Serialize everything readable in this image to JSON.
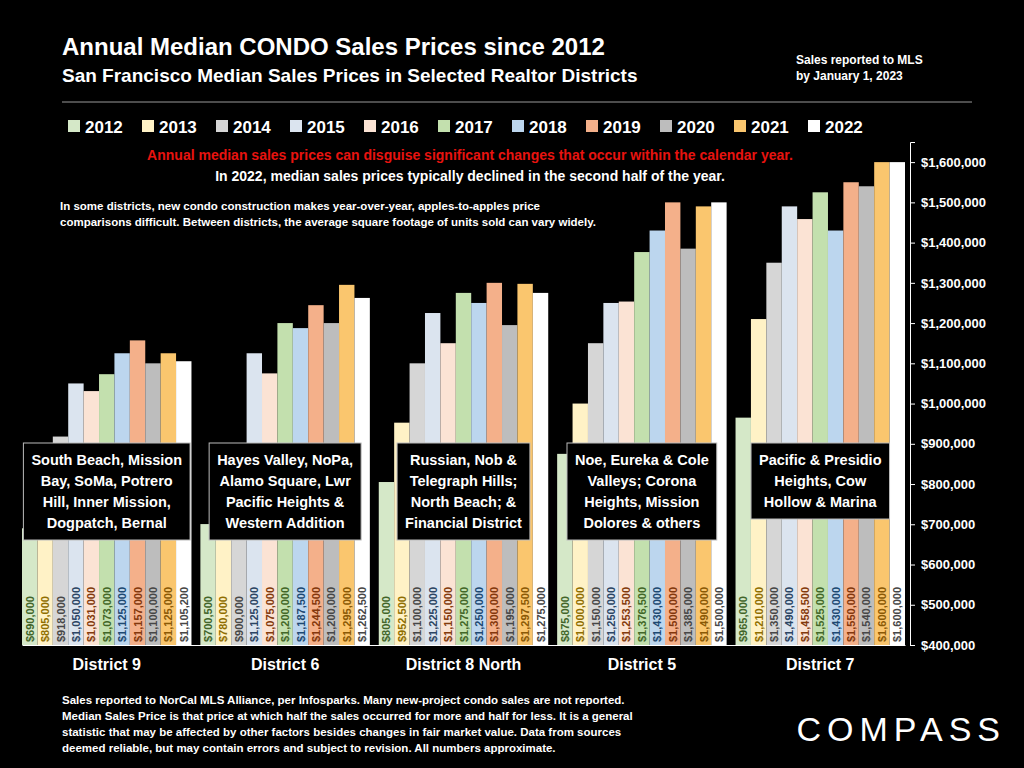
{
  "chart_data": {
    "type": "bar",
    "title": "Annual Median CONDO Sales Prices since 2012",
    "subtitle": "San Francisco Median Sales Prices in Selected Realtor Districts",
    "note": [
      "Sales reported to MLS",
      "by January 1, 2023"
    ],
    "annotations": {
      "highlight": "Annual median sales prices can disguise significant changes that occur within the calendar year.",
      "statement": "In 2022, median sales prices typically declined in the second half of the year.",
      "caveat": [
        "In some districts, new condo construction makes year-over-year, apples-to-apples price",
        "comparisons difficult. Between districts, the average square footage of units sold can vary widely."
      ],
      "districts": [
        [
          "South Beach, Mission",
          "Bay, SoMa, Potrero",
          "Hill, Inner Mission,",
          "Dogpatch, Bernal"
        ],
        [
          "Hayes Valley, NoPa,",
          "Alamo Square, Lwr",
          "Pacific Heights &",
          "Western Addition"
        ],
        [
          "Russian, Nob &",
          "Telegraph Hills;",
          "North Beach; &",
          "Financial District"
        ],
        [
          "Noe, Eureka & Cole",
          "Valleys; Corona",
          "Heights, Mission",
          "Dolores & others"
        ],
        [
          "Pacific & Presidio",
          "Heights, Cow",
          "Hollow & Marina"
        ]
      ],
      "footnote": [
        "Sales reported to NorCal MLS Alliance, per Infosparks. Many new-project condo sales are not reported.",
        "Median Sales Price is that price at which half the sales occurred for more and half for less. It is a general",
        "statistic that may be affected by other factors besides changes in fair market value. Data from sources",
        "deemed reliable, but may contain errors and subject to revision.  All numbers approximate."
      ],
      "brand": "COMPASS"
    },
    "categories": [
      "District 9",
      "District 6",
      "District 8 North",
      "District 5",
      "District 7"
    ],
    "series": [
      {
        "name": "2012",
        "color": "#d5e8c8",
        "values": [
          690000,
          700500,
          805000,
          875000,
          965000
        ],
        "value_labels": [
          "$690,000",
          "$700,500",
          "$805,000",
          "$875,000",
          "$965,000"
        ]
      },
      {
        "name": "2013",
        "color": "#fff2c6",
        "values": [
          805000,
          780000,
          952500,
          1000000,
          1210000
        ],
        "value_labels": [
          "$805,000",
          "$780,000",
          "$952,500",
          "$1,000,000",
          "$1,210,000"
        ]
      },
      {
        "name": "2014",
        "color": "#d6d6d6",
        "values": [
          918000,
          900000,
          1100000,
          1150000,
          1350000
        ],
        "value_labels": [
          "$918,000",
          "$900,000",
          "$1,100,000",
          "$1,150,000",
          "$1,350,000"
        ]
      },
      {
        "name": "2015",
        "color": "#dbe4ef",
        "values": [
          1050000,
          1125000,
          1225000,
          1250000,
          1490000
        ],
        "value_labels": [
          "$1,050,000",
          "$1,125,000",
          "$1,225,000",
          "$1,250,000",
          "$1,490,000"
        ]
      },
      {
        "name": "2016",
        "color": "#fbe3d4",
        "values": [
          1031000,
          1075000,
          1150000,
          1253500,
          1458500
        ],
        "value_labels": [
          "$1,031,000",
          "$1,075,000",
          "$1,150,000",
          "$1,253,500",
          "$1,458,500"
        ]
      },
      {
        "name": "2017",
        "color": "#c3e0ae",
        "values": [
          1073000,
          1200000,
          1275000,
          1376500,
          1525000
        ],
        "value_labels": [
          "$1,073,000",
          "$1,200,000",
          "$1,275,000",
          "$1,376,500",
          "$1,525,000"
        ]
      },
      {
        "name": "2018",
        "color": "#bcd6ee",
        "values": [
          1125000,
          1187500,
          1250000,
          1430000,
          1430000
        ],
        "value_labels": [
          "$1,125,000",
          "$1,187,500",
          "$1,250,000",
          "$1,430,000",
          "$1,430,000"
        ]
      },
      {
        "name": "2019",
        "color": "#f4b08a",
        "values": [
          1157000,
          1244500,
          1300000,
          1500000,
          1550000
        ],
        "value_labels": [
          "$1,157,000",
          "$1,244,500",
          "$1,300,000",
          "$1,500,000",
          "$1,550,000"
        ]
      },
      {
        "name": "2020",
        "color": "#bdbdbd",
        "values": [
          1100000,
          1200000,
          1195000,
          1385000,
          1540000
        ],
        "value_labels": [
          "$1,100,000",
          "$1,200,000",
          "$1,195,000",
          "$1,385,000",
          "$1,540,000"
        ]
      },
      {
        "name": "2021",
        "color": "#fac66e",
        "values": [
          1125000,
          1295000,
          1297500,
          1490000,
          1600000
        ],
        "value_labels": [
          "$1,125,000",
          "$1,295,000",
          "$1,297,500",
          "$1,490,000",
          "$1,600,000"
        ]
      },
      {
        "name": "2022",
        "color": "#ffffff",
        "values": [
          1105200,
          1262500,
          1275000,
          1500000,
          1600000
        ],
        "value_labels": [
          "$1,105,200",
          "$1,262,500",
          "$1,275,000",
          "$1,500,000",
          "$1,600,000"
        ]
      }
    ],
    "ylim": [
      400000,
      1650000
    ],
    "yticks": [
      {
        "value": 400000,
        "label": "$400,000"
      },
      {
        "value": 500000,
        "label": "$500,000"
      },
      {
        "value": 600000,
        "label": "$600,000"
      },
      {
        "value": 700000,
        "label": "$700,000"
      },
      {
        "value": 800000,
        "label": "$800,000"
      },
      {
        "value": 900000,
        "label": "$900,000"
      },
      {
        "value": 1000000,
        "label": "$1,000,000"
      },
      {
        "value": 1100000,
        "label": "$1,100,000"
      },
      {
        "value": 1200000,
        "label": "$1,200,000"
      },
      {
        "value": 1300000,
        "label": "$1,300,000"
      },
      {
        "value": 1400000,
        "label": "$1,400,000"
      },
      {
        "value": 1500000,
        "label": "$1,500,000"
      },
      {
        "value": 1600000,
        "label": "$1,600,000"
      }
    ],
    "grid": false,
    "legend": "top",
    "data_labels": true
  }
}
